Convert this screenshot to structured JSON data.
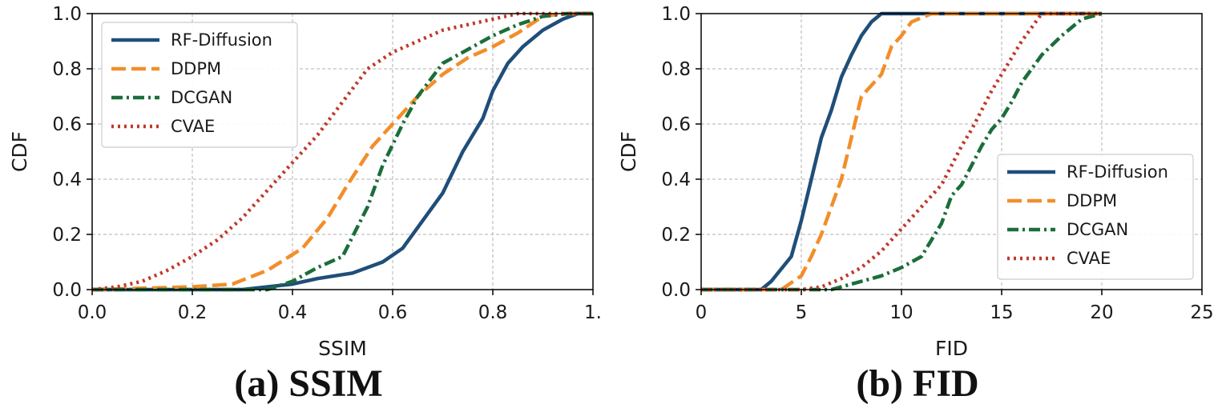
{
  "chart_data": [
    {
      "type": "line",
      "caption": "(a) SSIM",
      "xlabel": "SSIM",
      "ylabel": "CDF",
      "xlim": [
        0.0,
        1.0
      ],
      "ylim": [
        0.0,
        1.0
      ],
      "xticks": [
        "0.0",
        "0.2",
        "0.4",
        "0.6",
        "0.8",
        "1."
      ],
      "yticks": [
        "0.0",
        "0.2",
        "0.4",
        "0.6",
        "0.8",
        "1.0"
      ],
      "xtick_values": [
        0.0,
        0.2,
        0.4,
        0.6,
        0.8,
        1.0
      ],
      "ytick_values": [
        0.0,
        0.2,
        0.4,
        0.6,
        0.8,
        1.0
      ],
      "grid": true,
      "legend_position": "top-left",
      "series": [
        {
          "name": "RF-Diffusion",
          "color": "#1f4e79",
          "style": "solid",
          "x": [
            0.0,
            0.3,
            0.4,
            0.45,
            0.52,
            0.58,
            0.62,
            0.66,
            0.7,
            0.74,
            0.78,
            0.8,
            0.83,
            0.86,
            0.9,
            0.94,
            0.97,
            1.0
          ],
          "y": [
            0.0,
            0.0,
            0.02,
            0.04,
            0.06,
            0.1,
            0.15,
            0.25,
            0.35,
            0.5,
            0.62,
            0.72,
            0.82,
            0.88,
            0.94,
            0.98,
            1.0,
            1.0
          ]
        },
        {
          "name": "DDPM",
          "color": "#f28e2b",
          "style": "dash",
          "x": [
            0.0,
            0.2,
            0.28,
            0.35,
            0.42,
            0.47,
            0.51,
            0.56,
            0.6,
            0.65,
            0.7,
            0.75,
            0.8,
            0.85,
            0.9,
            0.94,
            1.0
          ],
          "y": [
            0.0,
            0.01,
            0.02,
            0.07,
            0.15,
            0.26,
            0.38,
            0.52,
            0.6,
            0.7,
            0.78,
            0.84,
            0.88,
            0.93,
            0.99,
            1.0,
            1.0
          ]
        },
        {
          "name": "DCGAN",
          "color": "#1b6e3a",
          "style": "dashdot",
          "x": [
            0.0,
            0.35,
            0.4,
            0.45,
            0.5,
            0.55,
            0.58,
            0.62,
            0.65,
            0.7,
            0.75,
            0.8,
            0.85,
            0.9,
            0.95,
            1.0
          ],
          "y": [
            0.0,
            0.0,
            0.03,
            0.08,
            0.12,
            0.3,
            0.45,
            0.6,
            0.7,
            0.82,
            0.87,
            0.92,
            0.96,
            0.99,
            1.0,
            1.0
          ]
        },
        {
          "name": "CVAE",
          "color": "#c0392b",
          "style": "dotted",
          "x": [
            0.0,
            0.05,
            0.1,
            0.15,
            0.2,
            0.25,
            0.3,
            0.35,
            0.4,
            0.45,
            0.5,
            0.55,
            0.6,
            0.65,
            0.7,
            0.75,
            0.8,
            0.85,
            0.9,
            1.0
          ],
          "y": [
            0.0,
            0.01,
            0.03,
            0.07,
            0.12,
            0.18,
            0.26,
            0.36,
            0.46,
            0.56,
            0.68,
            0.8,
            0.86,
            0.9,
            0.94,
            0.96,
            0.98,
            1.0,
            1.0,
            1.0
          ]
        }
      ]
    },
    {
      "type": "line",
      "caption": "(b) FID",
      "xlabel": "FID",
      "ylabel": "CDF",
      "xlim": [
        0,
        25
      ],
      "ylim": [
        0.0,
        1.0
      ],
      "xticks": [
        "0",
        "5",
        "10",
        "15",
        "20",
        "25"
      ],
      "yticks": [
        "0.0",
        "0.2",
        "0.4",
        "0.6",
        "0.8",
        "1.0"
      ],
      "xtick_values": [
        0,
        5,
        10,
        15,
        20,
        25
      ],
      "ytick_values": [
        0.0,
        0.2,
        0.4,
        0.6,
        0.8,
        1.0
      ],
      "grid": true,
      "legend_position": "bottom-right",
      "series": [
        {
          "name": "RF-Diffusion",
          "color": "#1f4e79",
          "style": "solid",
          "x": [
            0,
            3.0,
            3.5,
            4.5,
            5.0,
            5.5,
            6.0,
            6.5,
            7.0,
            7.5,
            8.0,
            8.5,
            9.0,
            20.0
          ],
          "y": [
            0.0,
            0.0,
            0.03,
            0.12,
            0.25,
            0.4,
            0.55,
            0.65,
            0.77,
            0.85,
            0.92,
            0.97,
            1.0,
            1.0
          ]
        },
        {
          "name": "DDPM",
          "color": "#f28e2b",
          "style": "dash",
          "x": [
            0,
            4.0,
            5.0,
            5.5,
            6.0,
            6.5,
            7.0,
            7.5,
            8.0,
            8.5,
            9.0,
            9.5,
            10.0,
            10.5,
            11.5,
            20.0
          ],
          "y": [
            0.0,
            0.0,
            0.05,
            0.12,
            0.2,
            0.3,
            0.4,
            0.55,
            0.7,
            0.74,
            0.78,
            0.88,
            0.92,
            0.97,
            1.0,
            1.0
          ]
        },
        {
          "name": "DCGAN",
          "color": "#1b6e3a",
          "style": "dashdot",
          "x": [
            0,
            6.5,
            7.5,
            9.0,
            10.0,
            11.0,
            11.5,
            12.0,
            12.5,
            13.0,
            13.5,
            14.0,
            14.5,
            15.0,
            15.5,
            16.0,
            16.5,
            17.0,
            18.0,
            19.0,
            20.0
          ],
          "y": [
            0.0,
            0.0,
            0.02,
            0.05,
            0.08,
            0.12,
            0.18,
            0.24,
            0.34,
            0.38,
            0.45,
            0.52,
            0.58,
            0.62,
            0.68,
            0.75,
            0.8,
            0.85,
            0.92,
            0.98,
            1.0
          ]
        },
        {
          "name": "CVAE",
          "color": "#c0392b",
          "style": "dotted",
          "x": [
            0,
            5.0,
            6.0,
            7.0,
            8.0,
            9.0,
            10.0,
            11.0,
            12.0,
            12.5,
            13.0,
            13.5,
            14.0,
            14.5,
            15.0,
            15.5,
            16.0,
            16.5,
            17.0,
            17.5,
            20.0
          ],
          "y": [
            0.0,
            0.0,
            0.01,
            0.04,
            0.08,
            0.14,
            0.22,
            0.3,
            0.38,
            0.45,
            0.52,
            0.58,
            0.65,
            0.72,
            0.78,
            0.84,
            0.9,
            0.95,
            1.0,
            1.0,
            1.0
          ]
        }
      ]
    }
  ]
}
